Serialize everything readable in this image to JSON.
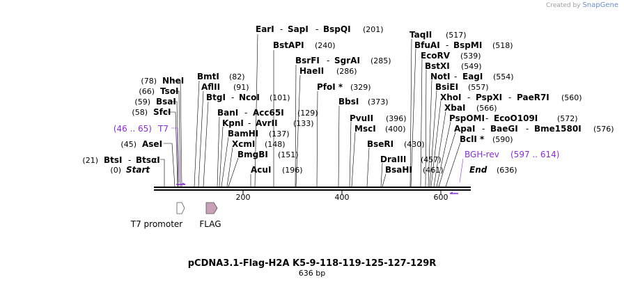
{
  "brand": {
    "prefix": "Created by",
    "name": "SnapGene"
  },
  "plasmid": {
    "name": "pCDNA3.1-Flag-H2A K5-9-118-119-125-127-129R",
    "length_label": "636 bp",
    "length": 636
  },
  "ends": [
    {
      "label": "Start",
      "pos": "(0)"
    },
    {
      "label": "End",
      "pos": "(636)"
    }
  ],
  "ruler": {
    "ticks": [
      "200",
      "400",
      "600"
    ]
  },
  "primers": [
    {
      "label": "T7",
      "range": "(46 .. 65)"
    },
    {
      "label": "BGH-rev",
      "range": "(597 .. 614)"
    }
  ],
  "features": [
    {
      "label": "T7 promoter",
      "color": "#ffffff"
    },
    {
      "label": "FLAG",
      "color": "#c8a0b8"
    }
  ],
  "enzymes_left": [
    {
      "names": [
        "NheI"
      ],
      "pos": "(78)"
    },
    {
      "names": [
        "TsoI"
      ],
      "pos": "(66)"
    },
    {
      "names": [
        "BsaI"
      ],
      "pos": "(59)"
    },
    {
      "names": [
        "SfcI"
      ],
      "pos": "(58)"
    },
    {
      "names": [
        "AseI"
      ],
      "pos": "(45)"
    },
    {
      "names": [
        "BtsI",
        "BtsαI"
      ],
      "pos": "(21)"
    }
  ],
  "enzymes_top": [
    {
      "names": [
        "EarI",
        "SapI",
        "BspQI"
      ],
      "pos": "(201)"
    },
    {
      "names": [
        "BstAPI"
      ],
      "pos": "(240)"
    },
    {
      "names": [
        "BsrFI",
        "SgrAI"
      ],
      "pos": "(285)"
    },
    {
      "names": [
        "HaeII"
      ],
      "pos": "(286)"
    },
    {
      "names": [
        "BmtI"
      ],
      "pos": "(82)"
    },
    {
      "names": [
        "AflII"
      ],
      "pos": "(91)"
    },
    {
      "names": [
        "BtgI",
        "NcoI"
      ],
      "pos": "(101)"
    },
    {
      "names": [
        "PfoI *"
      ],
      "pos": "(329)"
    },
    {
      "names": [
        "BanI",
        "Acc65I"
      ],
      "pos": "(129)"
    },
    {
      "names": [
        "KpnI",
        "AvrII"
      ],
      "pos": "(133)"
    },
    {
      "names": [
        "BbsI"
      ],
      "pos": "(373)"
    },
    {
      "names": [
        "BamHI"
      ],
      "pos": "(137)"
    },
    {
      "names": [
        "PvuII"
      ],
      "pos": "(396)"
    },
    {
      "names": [
        "XcmI"
      ],
      "pos": "(148)"
    },
    {
      "names": [
        "MscI"
      ],
      "pos": "(400)"
    },
    {
      "names": [
        "BmgBI"
      ],
      "pos": "(151)"
    },
    {
      "names": [
        "BseRI"
      ],
      "pos": "(430)"
    },
    {
      "names": [
        "AcuI"
      ],
      "pos": "(196)"
    },
    {
      "names": [
        "DraIII"
      ],
      "pos": "(457)"
    },
    {
      "names": [
        "BsaHI"
      ],
      "pos": "(461)"
    }
  ],
  "enzymes_right": [
    {
      "names": [
        "TaqII"
      ],
      "pos": "(517)"
    },
    {
      "names": [
        "BfuAI",
        "BspMI"
      ],
      "pos": "(518)"
    },
    {
      "names": [
        "EcoRV"
      ],
      "pos": "(539)"
    },
    {
      "names": [
        "BstXI"
      ],
      "pos": "(549)"
    },
    {
      "names": [
        "NotI",
        "EagI"
      ],
      "pos": "(554)"
    },
    {
      "names": [
        "BsiEI"
      ],
      "pos": "(557)"
    },
    {
      "names": [
        "XhoI",
        "PspXI",
        "PaeR7I"
      ],
      "pos": "(560)"
    },
    {
      "names": [
        "XbaI"
      ],
      "pos": "(566)"
    },
    {
      "names": [
        "PspOMI",
        "EcoO109I"
      ],
      "pos": "(572)"
    },
    {
      "names": [
        "ApaI",
        "BaeGI",
        "Bme1580I"
      ],
      "pos": "(576)"
    },
    {
      "names": [
        "BclI *"
      ],
      "pos": "(590)"
    }
  ]
}
